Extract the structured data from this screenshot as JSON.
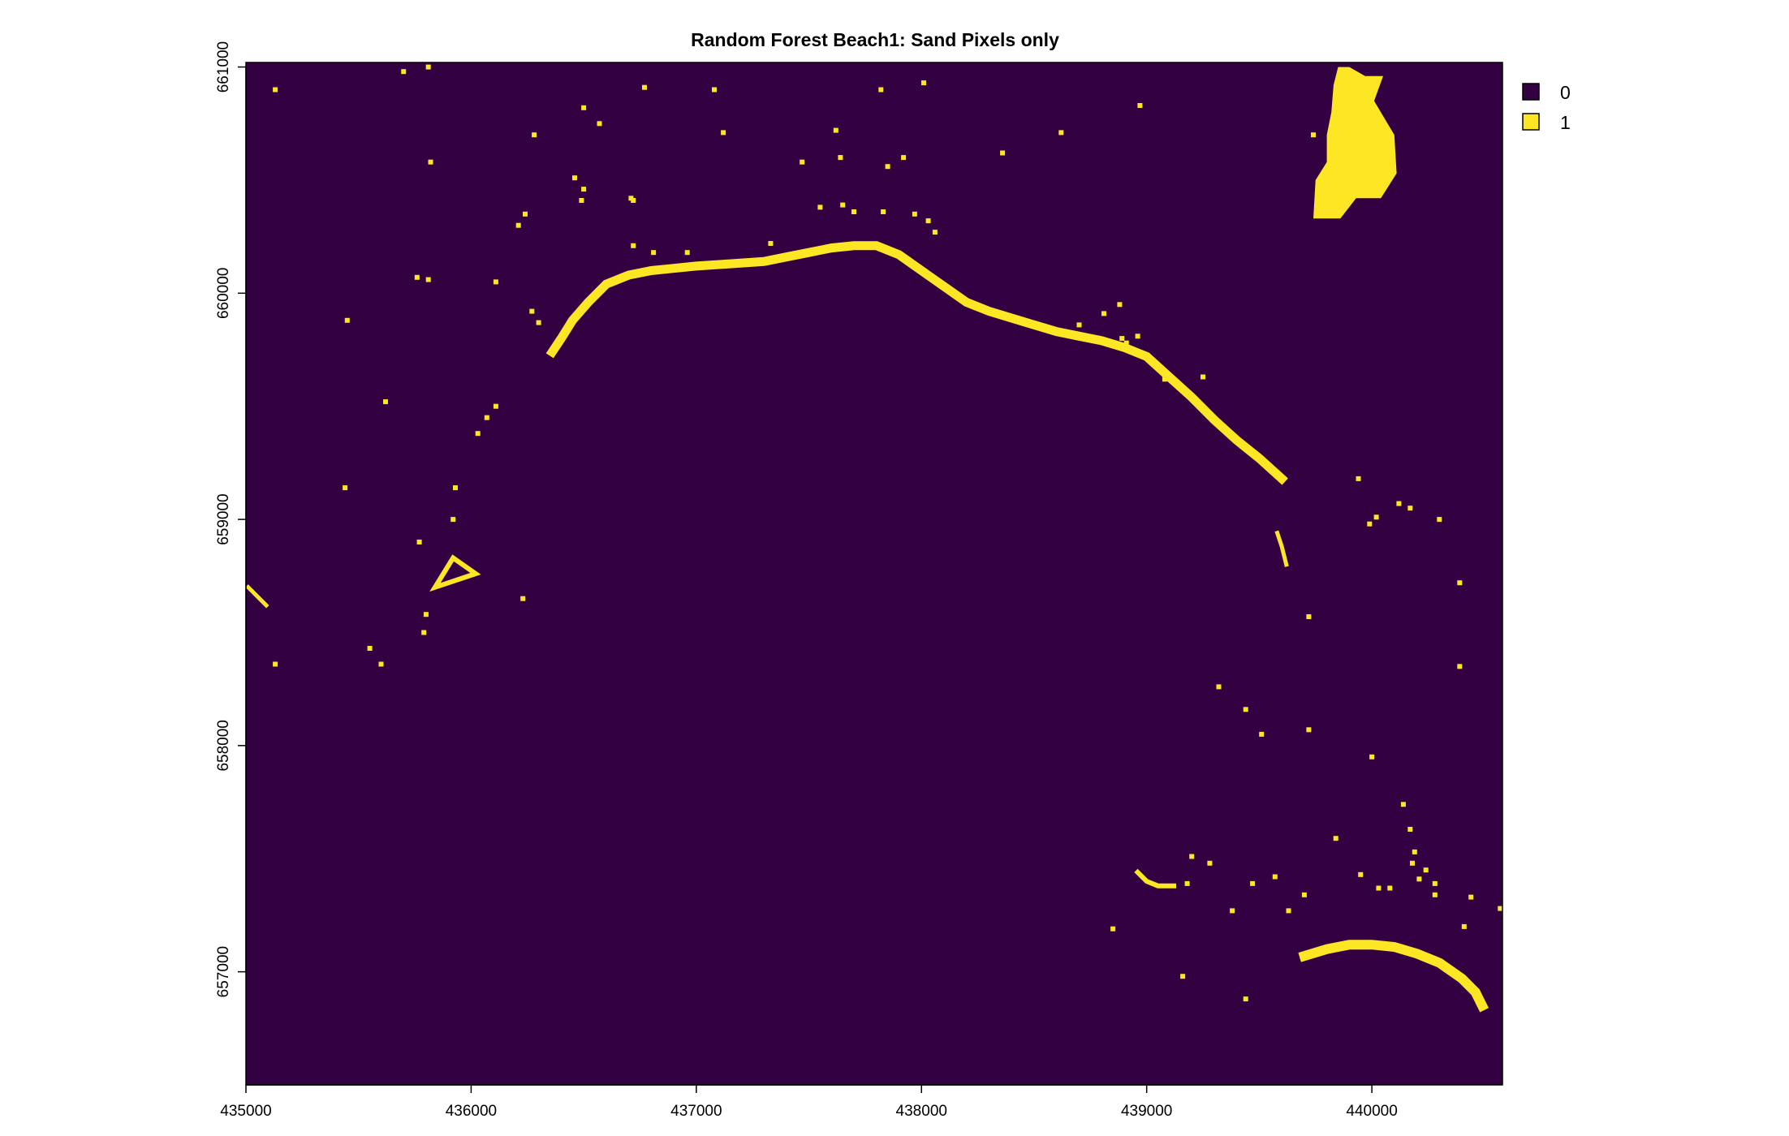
{
  "chart_data": {
    "type": "heatmap",
    "title": "Random Forest Beach1: Sand Pixels only",
    "xlabel": "",
    "ylabel": "",
    "xlim": [
      435000,
      440580
    ],
    "ylim": [
      656500,
      661020
    ],
    "x_ticks": [
      "435000",
      "436000",
      "437000",
      "438000",
      "439000",
      "440000"
    ],
    "y_ticks": [
      "657000",
      "658000",
      "659000",
      "660000",
      "661000"
    ],
    "legend": {
      "placement": "top-right",
      "entries": [
        {
          "label": "0",
          "color": "#330042"
        },
        {
          "label": "1",
          "color": "#fde725"
        }
      ]
    },
    "background_class": "0",
    "sand_class": "1",
    "sand_features": {
      "north_arc": [
        [
          436360,
          659740
        ],
        [
          436400,
          659800
        ],
        [
          436450,
          659880
        ],
        [
          436520,
          659960
        ],
        [
          436600,
          660040
        ],
        [
          436700,
          660080
        ],
        [
          436800,
          660100
        ],
        [
          436900,
          660110
        ],
        [
          437000,
          660120
        ],
        [
          437150,
          660130
        ],
        [
          437300,
          660140
        ],
        [
          437400,
          660160
        ],
        [
          437500,
          660180
        ],
        [
          437600,
          660200
        ],
        [
          437700,
          660210
        ],
        [
          437800,
          660210
        ],
        [
          437900,
          660170
        ],
        [
          438000,
          660100
        ],
        [
          438100,
          660030
        ],
        [
          438200,
          659960
        ],
        [
          438300,
          659920
        ],
        [
          438400,
          659890
        ],
        [
          438500,
          659860
        ],
        [
          438600,
          659830
        ],
        [
          438700,
          659810
        ],
        [
          438800,
          659790
        ],
        [
          438900,
          659760
        ],
        [
          439000,
          659720
        ],
        [
          439100,
          659630
        ],
        [
          439200,
          659540
        ],
        [
          439300,
          659440
        ],
        [
          439400,
          659350
        ],
        [
          439500,
          659270
        ],
        [
          439600,
          659180
        ]
      ],
      "south_arc": [
        [
          439700,
          657070
        ],
        [
          439800,
          657100
        ],
        [
          439900,
          657120
        ],
        [
          440000,
          657120
        ],
        [
          440100,
          657110
        ],
        [
          440200,
          657080
        ],
        [
          440300,
          657040
        ],
        [
          440400,
          656970
        ],
        [
          440460,
          656910
        ],
        [
          440490,
          656850
        ]
      ],
      "southeast_strip": [
        [
          438960,
          657440
        ],
        [
          439000,
          657400
        ],
        [
          439050,
          657380
        ],
        [
          439120,
          657380
        ]
      ],
      "east_strip": [
        [
          439580,
          658940
        ],
        [
          439600,
          658880
        ],
        [
          439620,
          658800
        ]
      ],
      "west_edge_strip": [
        [
          435010,
          658700
        ],
        [
          435050,
          658660
        ],
        [
          435090,
          658620
        ]
      ],
      "northeast_blob": [
        [
          439740,
          660330
        ],
        [
          439750,
          660500
        ],
        [
          439800,
          660580
        ],
        [
          439800,
          660700
        ],
        [
          439820,
          660800
        ],
        [
          439830,
          660920
        ],
        [
          439850,
          661000
        ],
        [
          439900,
          661000
        ],
        [
          439970,
          660960
        ],
        [
          440050,
          660960
        ],
        [
          440010,
          660850
        ],
        [
          440100,
          660700
        ],
        [
          440110,
          660530
        ],
        [
          440040,
          660420
        ],
        [
          439930,
          660420
        ],
        [
          439860,
          660330
        ]
      ],
      "west_triangle": [
        [
          435840,
          658700
        ],
        [
          435920,
          658830
        ],
        [
          436020,
          658760
        ]
      ]
    },
    "sand_cells": [
      [
        435810,
        661000
      ],
      [
        435700,
        660980
      ],
      [
        435130,
        660900
      ],
      [
        436770,
        660910
      ],
      [
        437080,
        660900
      ],
      [
        437820,
        660900
      ],
      [
        438010,
        660930
      ],
      [
        438970,
        660830
      ],
      [
        436280,
        660700
      ],
      [
        436570,
        660750
      ],
      [
        436500,
        660820
      ],
      [
        437120,
        660710
      ],
      [
        437620,
        660720
      ],
      [
        438620,
        660710
      ],
      [
        439740,
        660700
      ],
      [
        437640,
        660600
      ],
      [
        437850,
        660560
      ],
      [
        435820,
        660580
      ],
      [
        437470,
        660580
      ],
      [
        437920,
        660600
      ],
      [
        438360,
        660620
      ],
      [
        436460,
        660510
      ],
      [
        436500,
        660460
      ],
      [
        436710,
        660420
      ],
      [
        436490,
        660410
      ],
      [
        436720,
        660410
      ],
      [
        437550,
        660380
      ],
      [
        437650,
        660390
      ],
      [
        437700,
        660360
      ],
      [
        437830,
        660360
      ],
      [
        437970,
        660350
      ],
      [
        438030,
        660320
      ],
      [
        438060,
        660270
      ],
      [
        436210,
        660300
      ],
      [
        436240,
        660350
      ],
      [
        436720,
        660210
      ],
      [
        436810,
        660180
      ],
      [
        436960,
        660180
      ],
      [
        437330,
        660220
      ],
      [
        435760,
        660070
      ],
      [
        435810,
        660060
      ],
      [
        436110,
        660050
      ],
      [
        435450,
        659880
      ],
      [
        436270,
        659920
      ],
      [
        436300,
        659870
      ],
      [
        438700,
        659860
      ],
      [
        438890,
        659800
      ],
      [
        438910,
        659780
      ],
      [
        438960,
        659810
      ],
      [
        438810,
        659910
      ],
      [
        438880,
        659950
      ],
      [
        439080,
        659620
      ],
      [
        439250,
        659630
      ],
      [
        435620,
        659520
      ],
      [
        436110,
        659500
      ],
      [
        436070,
        659450
      ],
      [
        436030,
        659380
      ],
      [
        435440,
        659140
      ],
      [
        435930,
        659140
      ],
      [
        435920,
        659000
      ],
      [
        439940,
        659180
      ],
      [
        440120,
        659070
      ],
      [
        440170,
        659050
      ],
      [
        440300,
        659000
      ],
      [
        440020,
        659010
      ],
      [
        439990,
        658980
      ],
      [
        435770,
        658900
      ],
      [
        435800,
        658580
      ],
      [
        435790,
        658500
      ],
      [
        435550,
        658430
      ],
      [
        435130,
        658360
      ],
      [
        435600,
        658360
      ],
      [
        436230,
        658650
      ],
      [
        439720,
        658570
      ],
      [
        440390,
        658720
      ],
      [
        440390,
        658350
      ],
      [
        439320,
        658260
      ],
      [
        439440,
        658160
      ],
      [
        439510,
        658050
      ],
      [
        439720,
        658070
      ],
      [
        440000,
        657950
      ],
      [
        440140,
        657740
      ],
      [
        440170,
        657630
      ],
      [
        439840,
        657590
      ],
      [
        440190,
        657530
      ],
      [
        440180,
        657480
      ],
      [
        440210,
        657410
      ],
      [
        440240,
        657450
      ],
      [
        440280,
        657390
      ],
      [
        440280,
        657340
      ],
      [
        439950,
        657430
      ],
      [
        440030,
        657370
      ],
      [
        440080,
        657370
      ],
      [
        440410,
        657200
      ],
      [
        440440,
        657330
      ],
      [
        440570,
        657280
      ],
      [
        439700,
        657340
      ],
      [
        439630,
        657270
      ],
      [
        439570,
        657420
      ],
      [
        439470,
        657390
      ],
      [
        439380,
        657270
      ],
      [
        439280,
        657480
      ],
      [
        439200,
        657510
      ],
      [
        438850,
        657190
      ],
      [
        439160,
        656980
      ],
      [
        439440,
        656880
      ],
      [
        439180,
        657390
      ]
    ]
  }
}
